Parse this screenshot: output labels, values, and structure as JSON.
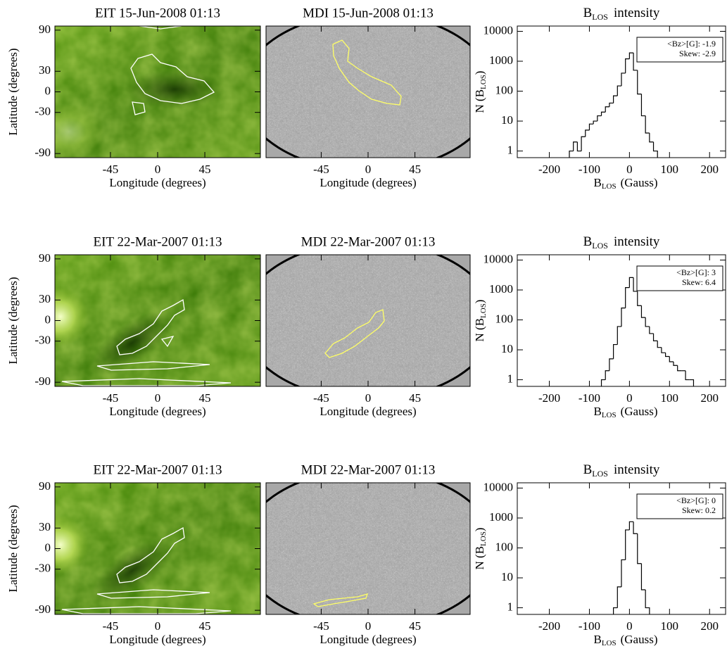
{
  "chart_data": [
    {
      "type": "image",
      "colormap": "green",
      "title": "EIT 15-Jun-2008 01:13",
      "xlabel": "Longitude (degrees)",
      "ylabel": "Latitude (degrees)",
      "xlim": [
        -98,
        98
      ],
      "ylim": [
        -96,
        96
      ],
      "xticks": [
        -45,
        0,
        45
      ],
      "yticks": [
        90,
        30,
        0,
        -30,
        -90
      ]
    },
    {
      "type": "image",
      "colormap": "gray",
      "title": "MDI 15-Jun-2008 01:13",
      "xlabel": "Longitude (degrees)",
      "xlim": [
        -98,
        98
      ],
      "ylim": [
        -96,
        96
      ],
      "xticks": [
        -45,
        0,
        45
      ]
    },
    {
      "type": "histogram",
      "title": [
        "B",
        "LOS",
        "intensity"
      ],
      "xlabel": [
        "B",
        "LOS",
        "(Gauss)"
      ],
      "ylabel": [
        "N (B",
        "LOS",
        ")"
      ],
      "log_y": true,
      "xlim": [
        -280,
        240
      ],
      "ylim": [
        0.6,
        15000
      ],
      "xticks": [
        -200,
        -100,
        0,
        100,
        200
      ],
      "yticks": [
        1,
        10,
        100,
        1000,
        10000
      ],
      "annotations": [
        "<Bz>[G]: -1.9",
        "Skew: -2.9"
      ],
      "color": "#000000",
      "bins": [
        -250,
        -240,
        -230,
        -220,
        -210,
        -200,
        -190,
        -180,
        -170,
        -160,
        -150,
        -140,
        -130,
        -120,
        -110,
        -100,
        -90,
        -80,
        -70,
        -60,
        -50,
        -40,
        -30,
        -20,
        -10,
        0,
        10,
        20,
        30,
        40,
        50,
        60,
        70,
        80,
        90,
        100,
        110,
        120,
        130,
        140,
        150,
        160,
        170,
        180,
        190,
        200,
        210,
        220,
        230,
        240,
        250
      ],
      "values": [
        null,
        null,
        null,
        null,
        null,
        null,
        null,
        null,
        null,
        null,
        1,
        2,
        1,
        3,
        5,
        8,
        10,
        15,
        20,
        30,
        40,
        70,
        150,
        400,
        1200,
        1900,
        500,
        80,
        15,
        4,
        2,
        1,
        null,
        null,
        null,
        null,
        null,
        null,
        null,
        null,
        null,
        null,
        null,
        null,
        null,
        null,
        null,
        null,
        null,
        null
      ]
    },
    {
      "type": "image",
      "colormap": "green",
      "title": "EIT 22-Mar-2007 01:13",
      "xlabel": "Longitude (degrees)",
      "ylabel": "Latitude (degrees)",
      "xlim": [
        -98,
        98
      ],
      "ylim": [
        -96,
        96
      ],
      "xticks": [
        -45,
        0,
        45
      ],
      "yticks": [
        90,
        30,
        0,
        -30,
        -90
      ]
    },
    {
      "type": "image",
      "colormap": "gray",
      "title": "MDI 22-Mar-2007 01:13",
      "xlabel": "Longitude (degrees)",
      "xlim": [
        -98,
        98
      ],
      "ylim": [
        -96,
        96
      ],
      "xticks": [
        -45,
        0,
        45
      ]
    },
    {
      "type": "histogram",
      "title": [
        "B",
        "LOS",
        "intensity"
      ],
      "xlabel": [
        "B",
        "LOS",
        "(Gauss)"
      ],
      "ylabel": [
        "N (B",
        "LOS",
        ")"
      ],
      "log_y": true,
      "xlim": [
        -280,
        240
      ],
      "ylim": [
        0.6,
        15000
      ],
      "xticks": [
        -200,
        -100,
        0,
        100,
        200
      ],
      "yticks": [
        1,
        10,
        100,
        1000,
        10000
      ],
      "annotations": [
        "<Bz>[G]: 3",
        "Skew: 6.4"
      ],
      "color": "#000000",
      "bins": [
        -250,
        -240,
        -230,
        -220,
        -210,
        -200,
        -190,
        -180,
        -170,
        -160,
        -150,
        -140,
        -130,
        -120,
        -110,
        -100,
        -90,
        -80,
        -70,
        -60,
        -50,
        -40,
        -30,
        -20,
        -10,
        0,
        10,
        20,
        30,
        40,
        50,
        60,
        70,
        80,
        90,
        100,
        110,
        120,
        130,
        140,
        150,
        160,
        170,
        180,
        190,
        200,
        210,
        220,
        230,
        240,
        250
      ],
      "values": [
        null,
        null,
        null,
        null,
        null,
        null,
        null,
        null,
        null,
        null,
        null,
        null,
        null,
        null,
        null,
        null,
        null,
        null,
        1,
        2,
        5,
        15,
        60,
        250,
        1200,
        2600,
        900,
        300,
        120,
        60,
        35,
        20,
        12,
        8,
        6,
        4,
        3,
        2,
        2,
        1,
        1,
        null,
        null,
        null,
        null,
        null,
        null,
        null,
        null,
        null
      ]
    },
    {
      "type": "image",
      "colormap": "green",
      "title": "EIT 22-Mar-2007 01:13",
      "xlabel": "Longitude (degrees)",
      "ylabel": "Latitude (degrees)",
      "xlim": [
        -98,
        98
      ],
      "ylim": [
        -96,
        96
      ],
      "xticks": [
        -45,
        0,
        45
      ],
      "yticks": [
        90,
        30,
        0,
        -30,
        -90
      ]
    },
    {
      "type": "image",
      "colormap": "gray",
      "title": "MDI 22-Mar-2007 01:13",
      "xlabel": "Longitude (degrees)",
      "xlim": [
        -98,
        98
      ],
      "ylim": [
        -96,
        96
      ],
      "xticks": [
        -45,
        0,
        45
      ]
    },
    {
      "type": "histogram",
      "title": [
        "B",
        "LOS",
        "intensity"
      ],
      "xlabel": [
        "B",
        "LOS",
        "(Gauss)"
      ],
      "ylabel": [
        "N (B",
        "LOS",
        ")"
      ],
      "log_y": true,
      "xlim": [
        -280,
        240
      ],
      "ylim": [
        0.6,
        15000
      ],
      "xticks": [
        -200,
        -100,
        0,
        100,
        200
      ],
      "yticks": [
        1,
        10,
        100,
        1000,
        10000
      ],
      "annotations": [
        "<Bz>[G]: 0",
        "Skew: 0.2"
      ],
      "color": "#000000",
      "bins": [
        -250,
        -240,
        -230,
        -220,
        -210,
        -200,
        -190,
        -180,
        -170,
        -160,
        -150,
        -140,
        -130,
        -120,
        -110,
        -100,
        -90,
        -80,
        -70,
        -60,
        -50,
        -40,
        -30,
        -20,
        -10,
        0,
        10,
        20,
        30,
        40,
        50,
        60,
        70,
        80,
        90,
        100,
        110,
        120,
        130,
        140,
        150,
        160,
        170,
        180,
        190,
        200,
        210,
        220,
        230,
        240,
        250
      ],
      "values": [
        null,
        null,
        null,
        null,
        null,
        null,
        null,
        null,
        null,
        null,
        null,
        null,
        null,
        null,
        null,
        null,
        null,
        null,
        null,
        null,
        null,
        1,
        5,
        40,
        400,
        750,
        300,
        30,
        4,
        1,
        null,
        null,
        null,
        null,
        null,
        null,
        null,
        null,
        null,
        null,
        null,
        null,
        null,
        null,
        null,
        null,
        null,
        null,
        null,
        null
      ]
    }
  ]
}
